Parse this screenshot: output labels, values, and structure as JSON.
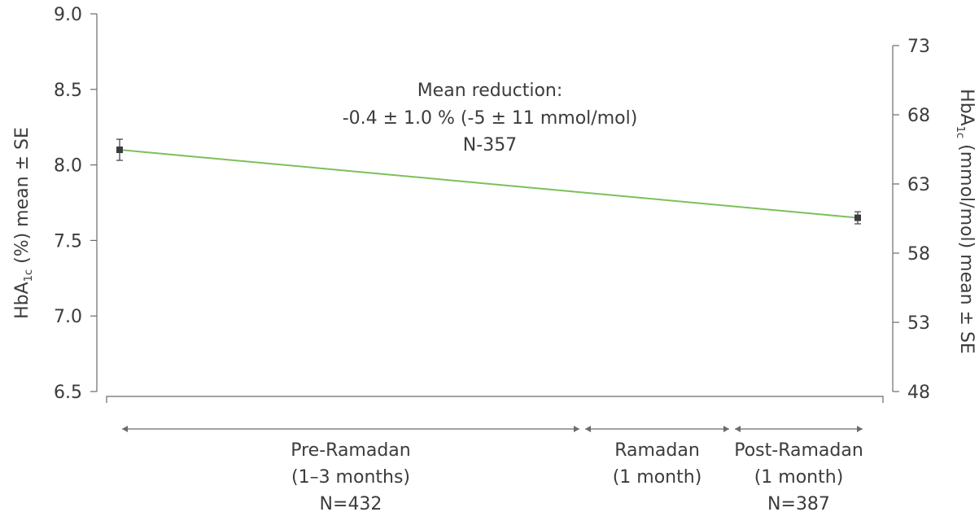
{
  "chart_data": {
    "type": "line",
    "y_axis": {
      "label_main": "HbA",
      "label_sub": "1c",
      "label_rest": " (%) mean ± SE",
      "ylim": [
        6.5,
        9.0
      ],
      "ticks": [
        "6.5",
        "7.0",
        "7.5",
        "8.0",
        "8.5",
        "9.0"
      ]
    },
    "y2_axis": {
      "label_main": "HbA",
      "label_sub": "1c",
      "label_rest": " (mmol/mol) mean ± SE",
      "ylim": [
        48,
        73
      ],
      "ticks": [
        "48",
        "53",
        "58",
        "63",
        "68",
        "73"
      ]
    },
    "series": [
      {
        "color": "#7cc05a",
        "points": [
          {
            "x": "Pre-Ramadan",
            "y": 8.1,
            "se": 0.07
          },
          {
            "x": "Post-Ramadan",
            "y": 7.65,
            "se": 0.04
          }
        ]
      }
    ],
    "annotation": [
      "Mean reduction:",
      "-0.4 ± 1.0 % (-5 ± 11 mmol/mol)",
      "N-357"
    ],
    "periods": [
      {
        "lines": [
          "Pre-Ramadan",
          "(1–3 months)",
          "N=432"
        ]
      },
      {
        "lines": [
          "Ramadan",
          "(1 month)"
        ]
      },
      {
        "lines": [
          "Post-Ramadan",
          "(1 month)",
          "N=387"
        ]
      }
    ],
    "colors": {
      "line": "#7cc05a",
      "marker": "#3c3c3c",
      "axis": "#6b6b6b",
      "text": "#3c3c3c"
    }
  }
}
